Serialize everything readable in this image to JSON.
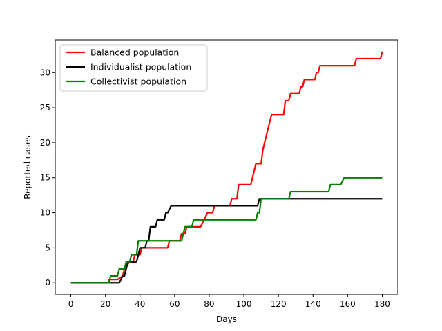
{
  "chart_data": {
    "type": "line",
    "xlabel": "Days",
    "ylabel": "Reported cases",
    "xlim": [
      -9,
      189
    ],
    "ylim": [
      -1.65,
      34.65
    ],
    "xticks": [
      0,
      20,
      40,
      60,
      80,
      100,
      120,
      140,
      160,
      180
    ],
    "yticks": [
      0,
      5,
      10,
      15,
      20,
      25,
      30
    ],
    "grid": false,
    "legend_position": "upper left",
    "series": [
      {
        "name": "Balanced population",
        "color": "#ff0000",
        "points": [
          [
            0,
            0
          ],
          [
            22,
            0
          ],
          [
            22,
            0.5
          ],
          [
            27,
            0.5
          ],
          [
            30,
            1
          ],
          [
            31,
            2
          ],
          [
            34,
            3
          ],
          [
            36,
            3
          ],
          [
            37,
            4
          ],
          [
            40,
            4
          ],
          [
            41,
            5
          ],
          [
            56,
            5
          ],
          [
            57,
            6
          ],
          [
            63,
            6
          ],
          [
            64,
            7
          ],
          [
            66,
            7
          ],
          [
            67,
            8
          ],
          [
            75,
            8
          ],
          [
            77,
            9
          ],
          [
            79,
            10
          ],
          [
            82,
            10
          ],
          [
            83,
            11
          ],
          [
            92,
            11
          ],
          [
            93,
            12
          ],
          [
            96,
            12
          ],
          [
            97,
            14
          ],
          [
            104,
            14
          ],
          [
            106,
            16
          ],
          [
            107,
            17
          ],
          [
            110,
            17
          ],
          [
            111,
            19
          ],
          [
            114,
            22
          ],
          [
            116,
            24
          ],
          [
            123,
            24
          ],
          [
            124,
            26
          ],
          [
            126,
            26
          ],
          [
            127,
            27
          ],
          [
            132,
            27
          ],
          [
            133,
            28
          ],
          [
            134,
            28
          ],
          [
            135,
            29
          ],
          [
            141,
            29
          ],
          [
            142,
            30
          ],
          [
            143,
            30
          ],
          [
            144,
            31
          ],
          [
            164,
            31
          ],
          [
            165,
            32
          ],
          [
            179,
            32
          ],
          [
            180,
            33
          ]
        ]
      },
      {
        "name": "Individualist population",
        "color": "#000000",
        "points": [
          [
            0,
            0
          ],
          [
            28,
            0
          ],
          [
            30,
            1
          ],
          [
            31,
            1
          ],
          [
            32,
            2
          ],
          [
            33,
            3
          ],
          [
            38,
            3
          ],
          [
            39,
            4
          ],
          [
            40,
            5
          ],
          [
            43,
            5
          ],
          [
            44,
            6
          ],
          [
            45,
            6
          ],
          [
            46,
            8
          ],
          [
            49,
            8
          ],
          [
            50,
            9
          ],
          [
            54,
            9
          ],
          [
            55,
            10
          ],
          [
            56,
            10
          ],
          [
            58,
            11
          ],
          [
            108,
            11
          ],
          [
            109,
            12
          ],
          [
            180,
            12
          ]
        ]
      },
      {
        "name": "Collectivist population",
        "color": "#008000",
        "points": [
          [
            0,
            0
          ],
          [
            22,
            0
          ],
          [
            23,
            1
          ],
          [
            27,
            1
          ],
          [
            28,
            2
          ],
          [
            31,
            2
          ],
          [
            32,
            3
          ],
          [
            34,
            3
          ],
          [
            35,
            4
          ],
          [
            38,
            4
          ],
          [
            39,
            6
          ],
          [
            64,
            6
          ],
          [
            65,
            7
          ],
          [
            66,
            8
          ],
          [
            70,
            8
          ],
          [
            71,
            9
          ],
          [
            107,
            9
          ],
          [
            108,
            10
          ],
          [
            109,
            10
          ],
          [
            110,
            12
          ],
          [
            126,
            12
          ],
          [
            127,
            13
          ],
          [
            149,
            13
          ],
          [
            150,
            14
          ],
          [
            156,
            14
          ],
          [
            158,
            15
          ],
          [
            180,
            15
          ]
        ]
      }
    ]
  }
}
